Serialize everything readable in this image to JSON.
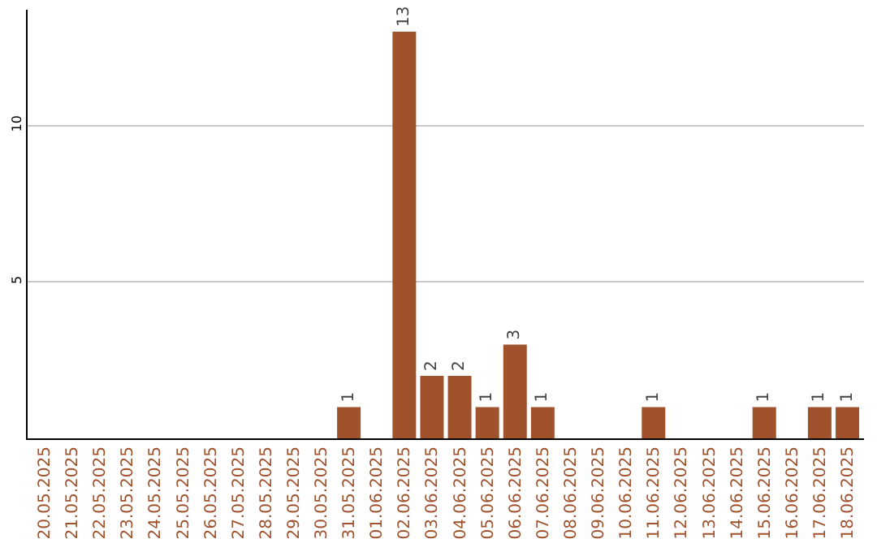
{
  "chart_data": {
    "type": "bar",
    "categories": [
      "20.05.2025",
      "21.05.2025",
      "22.05.2025",
      "23.05.2025",
      "24.05.2025",
      "25.05.2025",
      "26.05.2025",
      "27.05.2025",
      "28.05.2025",
      "29.05.2025",
      "30.05.2025",
      "31.05.2025",
      "01.06.2025",
      "02.06.2025",
      "03.06.2025",
      "04.06.2025",
      "05.06.2025",
      "06.06.2025",
      "07.06.2025",
      "08.06.2025",
      "09.06.2025",
      "10.06.2025",
      "11.06.2025",
      "12.06.2025",
      "13.06.2025",
      "14.06.2025",
      "15.06.2025",
      "16.06.2025",
      "17.06.2025",
      "18.06.2025"
    ],
    "values": [
      0,
      0,
      0,
      0,
      0,
      0,
      0,
      0,
      0,
      0,
      0,
      1,
      0,
      13,
      2,
      2,
      1,
      3,
      1,
      0,
      0,
      0,
      1,
      0,
      0,
      0,
      1,
      0,
      1,
      1
    ],
    "value_labels": [
      null,
      null,
      null,
      null,
      null,
      null,
      null,
      null,
      null,
      null,
      null,
      "1",
      null,
      "13",
      "2",
      "2",
      "1",
      "3",
      "1",
      null,
      null,
      null,
      "1",
      null,
      null,
      null,
      "1",
      null,
      "1",
      "1"
    ],
    "color": "#a0522d",
    "ylim": [
      0,
      13.7
    ],
    "yticks": [
      5,
      10
    ],
    "grid": "y"
  }
}
